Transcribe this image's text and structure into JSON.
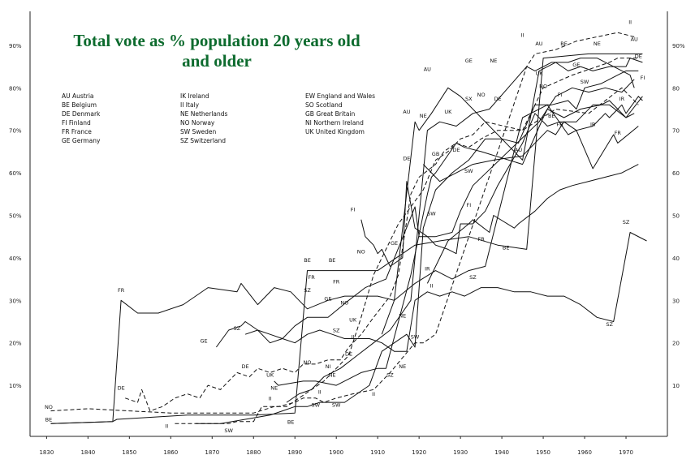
{
  "chart_data": {
    "type": "line",
    "title_lines": [
      "Total vote as % population 20 years old",
      "and older"
    ],
    "x_ticks": [
      1830,
      1840,
      1850,
      1860,
      1870,
      1880,
      1890,
      1900,
      1910,
      1920,
      1930,
      1940,
      1950,
      1960,
      1970
    ],
    "y_ticks_left": [
      "10%",
      "20%",
      "30%",
      "40%",
      "50%",
      "60%",
      "70%",
      "80%",
      "90%"
    ],
    "y_ticks_right": [
      "10",
      "20",
      "30",
      "40",
      "50",
      "60",
      "70",
      "80",
      "90%"
    ],
    "y_tick_values": [
      10,
      20,
      30,
      40,
      50,
      60,
      70,
      80,
      90
    ],
    "xlim": [
      1826,
      1980
    ],
    "ylim": [
      -2,
      98
    ],
    "legend_columns": [
      [
        "AU  Austria",
        "BE  Belgium",
        "DE  Denmark",
        "FI  Finland",
        "FR  France",
        "GE  Germany"
      ],
      [
        "IK  Ireland",
        "II  Italy",
        "NE  Netherlands",
        "NO  Norway",
        "SW  Sweden",
        "SZ  Switzerland"
      ],
      [
        "EW  England and Wales",
        "SO  Scotland",
        "GB  Great Britain",
        "NI  Northern Ireland",
        "UK  United Kingdom"
      ]
    ],
    "series": [
      {
        "code": "FR",
        "dash": false,
        "label": "FR",
        "x": [
          1831,
          1846,
          1848,
          1852,
          1857,
          1863,
          1869,
          1876,
          1877,
          1881,
          1885,
          1889,
          1893,
          1898,
          1902,
          1906,
          1910,
          1914,
          1919,
          1924,
          1928,
          1932,
          1936,
          1945,
          1951,
          1956,
          1958,
          1962,
          1967,
          1968,
          1973
        ],
        "y": [
          1,
          1.5,
          30,
          27,
          27,
          29,
          33,
          32,
          34,
          29,
          33,
          32,
          28,
          30,
          31,
          31,
          31,
          30,
          34,
          37,
          35,
          37,
          38,
          73,
          76,
          69,
          70,
          61,
          69,
          67,
          71
        ]
      },
      {
        "code": "BE",
        "dash": false,
        "label": "BE",
        "x": [
          1831,
          1846,
          1847,
          1864,
          1870,
          1880,
          1890,
          1893,
          1900,
          1910,
          1919,
          1925,
          1932,
          1939,
          1946,
          1950,
          1961,
          1971,
          1974
        ],
        "y": [
          1,
          1.5,
          2,
          3,
          3,
          3,
          3.5,
          37,
          37,
          37,
          43,
          44,
          45,
          43,
          42,
          87,
          88,
          88,
          88
        ]
      },
      {
        "code": "NO",
        "dash": true,
        "label": "NO",
        "x": [
          1831,
          1840,
          1850,
          1860,
          1870,
          1880,
          1885,
          1888,
          1891,
          1894,
          1897,
          1900,
          1903,
          1906,
          1909,
          1912,
          1915,
          1918,
          1921,
          1924,
          1927,
          1930,
          1933,
          1936,
          1945,
          1953,
          1961,
          1969,
          1973
        ],
        "y": [
          4,
          4.5,
          4,
          3.5,
          3.5,
          3.5,
          5,
          5,
          7,
          9,
          11,
          14,
          17,
          26,
          36,
          42,
          48,
          52,
          56,
          63,
          65,
          68,
          69,
          72,
          70,
          75,
          74,
          80,
          76
        ]
      },
      {
        "code": "DE",
        "dash": true,
        "label": "DE",
        "x": [
          1849,
          1852,
          1853,
          1855,
          1858,
          1861,
          1864,
          1867,
          1869,
          1872,
          1876,
          1879,
          1881,
          1884,
          1887,
          1890,
          1892,
          1895,
          1898,
          1901,
          1903,
          1906,
          1909,
          1913,
          1915,
          1918,
          1920,
          1924,
          1926,
          1929,
          1932,
          1935,
          1939,
          1945,
          1950,
          1957,
          1960,
          1966,
          1968,
          1971,
          1973
        ],
        "y": [
          7,
          6,
          9,
          4,
          5,
          7,
          8,
          7,
          10,
          9,
          13,
          12,
          14,
          13,
          14,
          13,
          15,
          15,
          16,
          16,
          19,
          22,
          26,
          31,
          36,
          55,
          59,
          62,
          65,
          67,
          66,
          68,
          70,
          70,
          80,
          83,
          84,
          86,
          87,
          87,
          87
        ]
      },
      {
        "code": "GE",
        "dash": false,
        "label": "GE",
        "x": [
          1871,
          1874,
          1877,
          1878,
          1881,
          1884,
          1887,
          1890,
          1893,
          1898,
          1903,
          1907,
          1912,
          1919,
          1920,
          1924,
          1928,
          1930,
          1932,
          1933,
          1949,
          1953,
          1957,
          1961,
          1965,
          1969,
          1972
        ],
        "y": [
          19,
          23,
          24,
          25,
          23,
          22,
          21,
          24,
          26,
          26,
          30,
          33,
          35,
          52,
          45,
          45,
          46,
          51,
          55,
          57,
          72,
          78,
          80,
          79,
          80,
          79,
          82
        ]
      },
      {
        "code": "SZ",
        "dash": false,
        "label": "SZ",
        "x": [
          1878,
          1881,
          1884,
          1887,
          1890,
          1893,
          1896,
          1899,
          1902,
          1905,
          1908,
          1911,
          1914,
          1917,
          1919,
          1922,
          1925,
          1928,
          1931,
          1935,
          1939,
          1943,
          1947,
          1951,
          1955,
          1959,
          1963,
          1967,
          1971,
          1975
        ],
        "y": [
          22,
          23,
          20,
          21,
          20,
          22,
          23,
          22,
          21,
          21,
          21,
          20,
          18,
          18,
          30,
          32,
          31,
          32,
          31,
          33,
          33,
          32,
          32,
          31,
          31,
          29,
          26,
          25,
          46,
          44
        ]
      },
      {
        "code": "SW",
        "dash": false,
        "label": "SW",
        "x": [
          1866,
          1872,
          1878,
          1884,
          1887,
          1890,
          1893,
          1896,
          1899,
          1902,
          1905,
          1908,
          1911,
          1914,
          1917,
          1919,
          1921,
          1924,
          1928,
          1932,
          1936,
          1940,
          1944,
          1948,
          1952,
          1956,
          1958,
          1960,
          1964,
          1968,
          1970,
          1973
        ],
        "y": [
          1,
          1,
          2,
          3,
          4,
          5,
          5,
          6,
          6,
          6,
          8,
          10,
          18,
          20,
          22,
          19,
          47,
          56,
          60,
          63,
          68,
          68,
          67,
          76,
          76,
          77,
          75,
          80,
          81,
          83,
          84,
          84
        ]
      },
      {
        "code": "FI",
        "dash": false,
        "label": "FI",
        "x": [
          1906,
          1907,
          1908,
          1909,
          1910,
          1911,
          1913,
          1916,
          1917,
          1919,
          1922,
          1924,
          1927,
          1929,
          1930,
          1933,
          1936,
          1939,
          1945,
          1948,
          1951,
          1954,
          1958,
          1962,
          1966,
          1970,
          1972
        ],
        "y": [
          49,
          45,
          44,
          43,
          41,
          42,
          38,
          40,
          58,
          47,
          45,
          43,
          42,
          41,
          48,
          48,
          51,
          57,
          67,
          74,
          71,
          72,
          72,
          76,
          76,
          73,
          74
        ]
      },
      {
        "code": "NE",
        "dash": false,
        "label": "NE",
        "x": [
          1888,
          1891,
          1894,
          1897,
          1901,
          1905,
          1909,
          1913,
          1918,
          1922,
          1925,
          1929,
          1933,
          1937,
          1946,
          1948,
          1952,
          1956,
          1959,
          1963,
          1967,
          1971,
          1972
        ],
        "y": [
          6,
          8,
          9,
          12,
          14,
          17,
          20,
          23,
          30,
          70,
          72,
          71,
          74,
          75,
          85,
          84,
          86,
          86,
          87,
          87,
          85,
          83,
          80
        ]
      },
      {
        "code": "II",
        "dash": true,
        "label": "II",
        "x": [
          1861,
          1865,
          1870,
          1874,
          1876,
          1880,
          1882,
          1886,
          1890,
          1892,
          1895,
          1897,
          1900,
          1904,
          1909,
          1913,
          1919,
          1921,
          1924,
          1946,
          1948,
          1953,
          1958,
          1963,
          1968,
          1972
        ],
        "y": [
          1,
          1,
          1,
          1,
          1.5,
          1.5,
          5,
          5,
          6,
          7,
          7,
          6,
          7,
          8,
          9,
          13,
          20,
          20,
          22,
          85,
          88,
          89,
          91,
          92,
          93,
          92
        ]
      },
      {
        "code": "AU",
        "dash": false,
        "label": "AU",
        "x": [
          1911,
          1914,
          1919,
          1920,
          1923,
          1927,
          1930,
          1945,
          1949,
          1953,
          1956,
          1959,
          1962,
          1966,
          1970,
          1971,
          1974
        ],
        "y": [
          22,
          30,
          72,
          70,
          74,
          80,
          78,
          63,
          84,
          86,
          84,
          85,
          84,
          85,
          85,
          87,
          86
        ]
      },
      {
        "code": "UK",
        "dash": false,
        "label": "UK",
        "x": [
          1885,
          1886,
          1892,
          1895,
          1900,
          1906,
          1910,
          1912,
          1918,
          1922,
          1923,
          1924,
          1929,
          1931,
          1935,
          1945,
          1950,
          1951,
          1955,
          1959,
          1964,
          1966,
          1970,
          1974
        ],
        "y": [
          11,
          10,
          11,
          11,
          10,
          13,
          14,
          14,
          36,
          55,
          59,
          60,
          67,
          66,
          65,
          62,
          73,
          75,
          73,
          75,
          76,
          77,
          73,
          78
        ]
      },
      {
        "code": "IR",
        "dash": false,
        "label": "IR",
        "x": [
          1922,
          1923,
          1927,
          1932,
          1933,
          1937,
          1938,
          1943,
          1944,
          1948,
          1951,
          1954,
          1957,
          1961,
          1965,
          1969,
          1973
        ],
        "y": [
          34,
          36,
          44,
          48,
          49,
          46,
          50,
          47,
          48,
          51,
          54,
          56,
          57,
          58,
          59,
          60,
          62
        ]
      },
      {
        "code": "NI",
        "dash": false,
        "label": "NI",
        "x": [
          1921,
          1925,
          1929,
          1933,
          1938,
          1945,
          1949,
          1951,
          1953,
          1955,
          1958,
          1962,
          1965,
          1966,
          1969,
          1970,
          1973,
          1974
        ],
        "y": [
          62,
          58,
          60,
          62,
          63,
          64,
          68,
          70,
          69,
          72,
          70,
          71,
          74,
          73,
          76,
          74,
          78,
          77
        ]
      }
    ],
    "annotations": [
      {
        "text": "NO",
        "x": 1830.5,
        "y": 4.5
      },
      {
        "text": "BE",
        "x": 1830.5,
        "y": 1.5
      },
      {
        "text": "FR",
        "x": 1848,
        "y": 32
      },
      {
        "text": "DE",
        "x": 1848,
        "y": 9
      },
      {
        "text": "II",
        "x": 1859,
        "y": 0
      },
      {
        "text": "SW",
        "x": 1874,
        "y": -1
      },
      {
        "text": "GE",
        "x": 1868,
        "y": 20
      },
      {
        "text": "SZ",
        "x": 1876,
        "y": 23
      },
      {
        "text": "DE",
        "x": 1878,
        "y": 14
      },
      {
        "text": "UK",
        "x": 1884,
        "y": 12
      },
      {
        "text": "NE",
        "x": 1885,
        "y": 9
      },
      {
        "text": "II",
        "x": 1884,
        "y": 6.5
      },
      {
        "text": "BE",
        "x": 1889,
        "y": 1
      },
      {
        "text": "BE",
        "x": 1893,
        "y": 39
      },
      {
        "text": "BE",
        "x": 1899,
        "y": 39
      },
      {
        "text": "FR",
        "x": 1894,
        "y": 35
      },
      {
        "text": "SZ",
        "x": 1893,
        "y": 32
      },
      {
        "text": "FR",
        "x": 1900,
        "y": 34
      },
      {
        "text": "GE",
        "x": 1898,
        "y": 30
      },
      {
        "text": "NO",
        "x": 1902,
        "y": 29
      },
      {
        "text": "UK",
        "x": 1904,
        "y": 25
      },
      {
        "text": "SZ",
        "x": 1900,
        "y": 22.5
      },
      {
        "text": "II",
        "x": 1904,
        "y": 21
      },
      {
        "text": "DE",
        "x": 1903,
        "y": 17
      },
      {
        "text": "NO",
        "x": 1893,
        "y": 15
      },
      {
        "text": "NI",
        "x": 1898,
        "y": 14
      },
      {
        "text": "NE",
        "x": 1899,
        "y": 12
      },
      {
        "text": "II",
        "x": 1896,
        "y": 8
      },
      {
        "text": "SW",
        "x": 1895,
        "y": 5
      },
      {
        "text": "SW",
        "x": 1900,
        "y": 5
      },
      {
        "text": "FI",
        "x": 1904,
        "y": 51
      },
      {
        "text": "NO",
        "x": 1906,
        "y": 41
      },
      {
        "text": "GE",
        "x": 1914,
        "y": 43
      },
      {
        "text": "NE",
        "x": 1916,
        "y": 26
      },
      {
        "text": "NE",
        "x": 1916,
        "y": 14
      },
      {
        "text": "SZ",
        "x": 1913,
        "y": 12
      },
      {
        "text": "II",
        "x": 1909,
        "y": 7.5
      },
      {
        "text": "SW",
        "x": 1919,
        "y": 21
      },
      {
        "text": "AU",
        "x": 1917,
        "y": 74
      },
      {
        "text": "NE",
        "x": 1921,
        "y": 73
      },
      {
        "text": "DE",
        "x": 1917,
        "y": 63
      },
      {
        "text": "IR",
        "x": 1922,
        "y": 37
      },
      {
        "text": "II",
        "x": 1923,
        "y": 33
      },
      {
        "text": "SW",
        "x": 1923,
        "y": 50
      },
      {
        "text": "GB",
        "x": 1924,
        "y": 64
      },
      {
        "text": "UK",
        "x": 1927,
        "y": 74
      },
      {
        "text": "DE",
        "x": 1929,
        "y": 65
      },
      {
        "text": "SW",
        "x": 1932,
        "y": 60
      },
      {
        "text": "FI",
        "x": 1932,
        "y": 52
      },
      {
        "text": "FR",
        "x": 1935,
        "y": 44
      },
      {
        "text": "SZ",
        "x": 1933,
        "y": 35
      },
      {
        "text": "AU",
        "x": 1922,
        "y": 84
      },
      {
        "text": "GE",
        "x": 1932,
        "y": 86
      },
      {
        "text": "SX",
        "x": 1932,
        "y": 77
      },
      {
        "text": "NO",
        "x": 1935,
        "y": 78
      },
      {
        "text": "DE",
        "x": 1939,
        "y": 77
      },
      {
        "text": "NE",
        "x": 1938,
        "y": 86
      },
      {
        "text": "AU",
        "x": 1944,
        "y": 65
      },
      {
        "text": "BE",
        "x": 1941,
        "y": 42
      },
      {
        "text": "II",
        "x": 1945,
        "y": 92
      },
      {
        "text": "AU",
        "x": 1949,
        "y": 90
      },
      {
        "text": "BE",
        "x": 1955,
        "y": 90
      },
      {
        "text": "NE",
        "x": 1963,
        "y": 90
      },
      {
        "text": "UK",
        "x": 1949,
        "y": 83
      },
      {
        "text": "NO",
        "x": 1950,
        "y": 80
      },
      {
        "text": "FI",
        "x": 1954,
        "y": 78
      },
      {
        "text": "BE",
        "x": 1952,
        "y": 73
      },
      {
        "text": "GE",
        "x": 1958,
        "y": 85
      },
      {
        "text": "SW",
        "x": 1960,
        "y": 81
      },
      {
        "text": "FR",
        "x": 1954,
        "y": 71
      },
      {
        "text": "IR",
        "x": 1962,
        "y": 71
      },
      {
        "text": "FR",
        "x": 1968,
        "y": 69
      },
      {
        "text": "IR",
        "x": 1969,
        "y": 77
      },
      {
        "text": "II",
        "x": 1971,
        "y": 95
      },
      {
        "text": "AU",
        "x": 1972,
        "y": 91
      },
      {
        "text": "DE",
        "x": 1973,
        "y": 87
      },
      {
        "text": "FI",
        "x": 1974,
        "y": 82
      },
      {
        "text": "SZ",
        "x": 1970,
        "y": 48
      },
      {
        "text": "SZ",
        "x": 1966,
        "y": 24
      }
    ]
  }
}
